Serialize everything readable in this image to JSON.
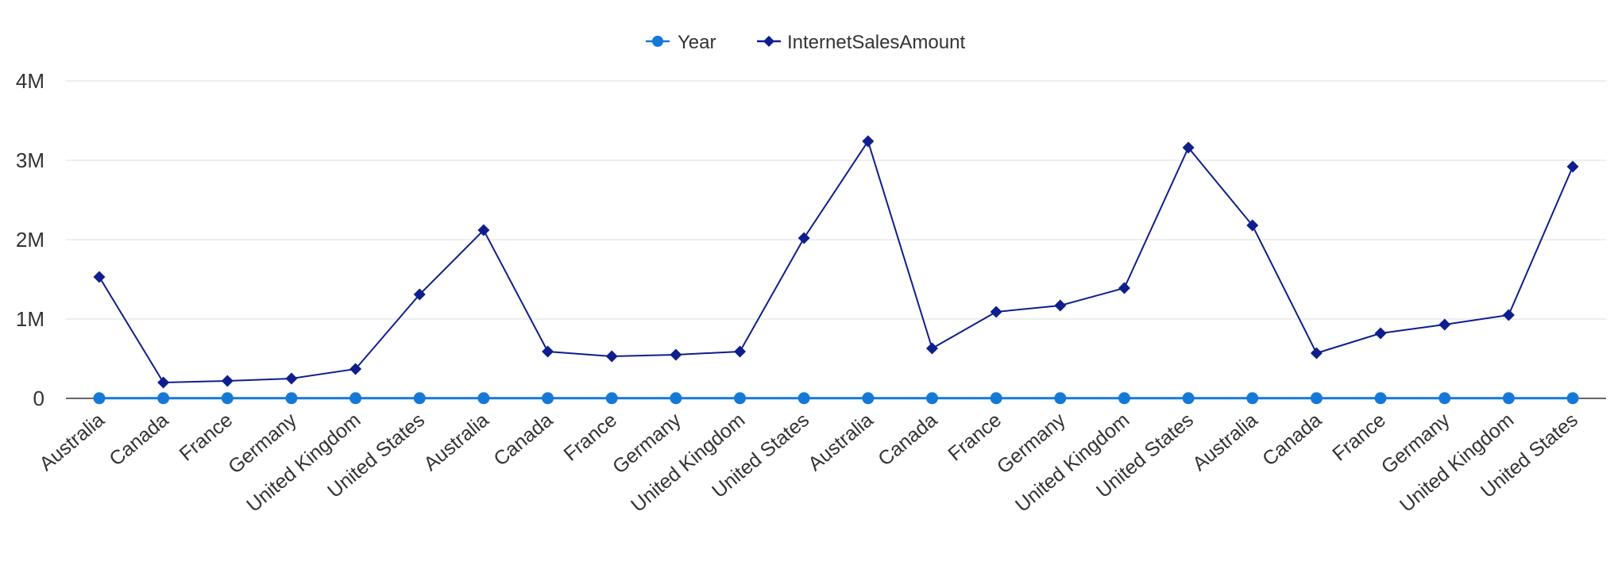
{
  "chart_data": {
    "type": "line",
    "categories": [
      "Australia",
      "Canada",
      "France",
      "Germany",
      "United Kingdom",
      "United States",
      "Australia",
      "Canada",
      "France",
      "Germany",
      "United Kingdom",
      "United States",
      "Australia",
      "Canada",
      "France",
      "Germany",
      "United Kingdom",
      "United States",
      "Australia",
      "Canada",
      "France",
      "Germany",
      "United Kingdom",
      "United States"
    ],
    "series": [
      {
        "name": "Year",
        "color": "#1479d6",
        "marker": "circle",
        "values": [
          2005,
          2005,
          2005,
          2005,
          2005,
          2005,
          2006,
          2006,
          2006,
          2006,
          2006,
          2006,
          2007,
          2007,
          2007,
          2007,
          2007,
          2007,
          2008,
          2008,
          2008,
          2008,
          2008,
          2008
        ]
      },
      {
        "name": "InternetSalesAmount",
        "color": "#0f1e8c",
        "marker": "diamond",
        "values": [
          1530000,
          200000,
          220000,
          250000,
          370000,
          1310000,
          2120000,
          590000,
          530000,
          550000,
          590000,
          2020000,
          3240000,
          630000,
          1090000,
          1170000,
          1390000,
          3160000,
          2180000,
          570000,
          820000,
          930000,
          1050000,
          2920000
        ]
      }
    ],
    "y_ticks": [
      "0",
      "1M",
      "2M",
      "3M",
      "4M"
    ],
    "ylim": [
      0,
      4000000
    ],
    "grid": true,
    "legend_position": "top-center"
  }
}
